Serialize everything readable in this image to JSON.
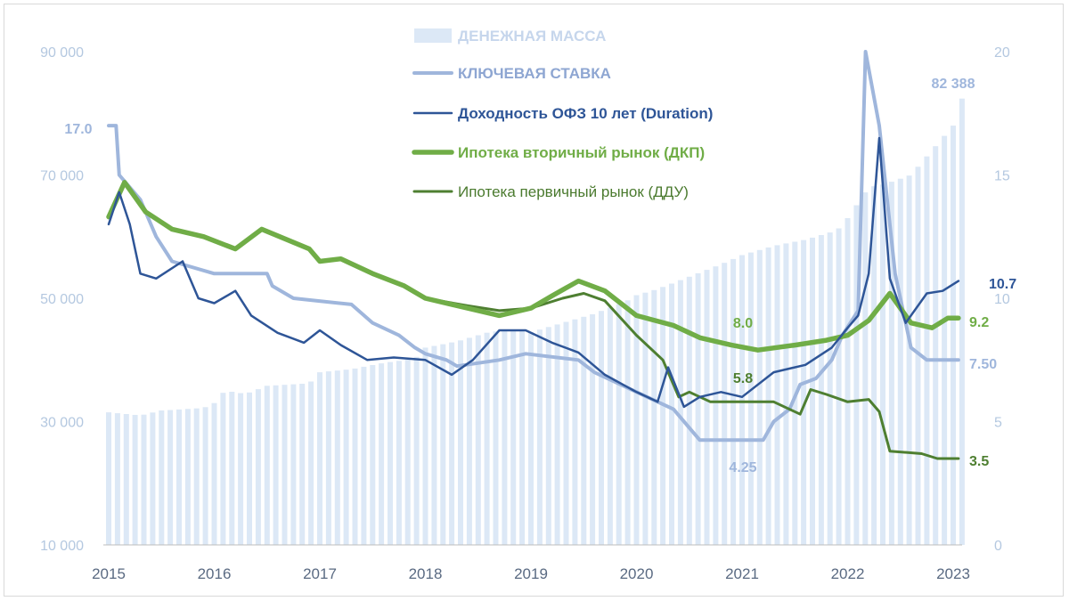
{
  "chart_data": {
    "type": "bar+line",
    "x_axis": {
      "range": [
        2015.0,
        2023.2
      ],
      "tick_labels": [
        "2015",
        "2016",
        "2017",
        "2018",
        "2019",
        "2020",
        "2021",
        "2022",
        "2023"
      ]
    },
    "y_left": {
      "range": [
        10000,
        90000
      ],
      "tick_labels": [
        "10 000",
        "30 000",
        "50 000",
        "70 000",
        "90 000"
      ],
      "tick_values": [
        10000,
        30000,
        50000,
        70000,
        90000
      ]
    },
    "y_right": {
      "range": [
        0,
        20
      ],
      "tick_labels": [
        "0",
        "5",
        "10",
        "15",
        "20"
      ],
      "tick_values": [
        0,
        5,
        10,
        15,
        20
      ]
    },
    "colors": {
      "money": "#dce8f6",
      "key_rate": "#9fb6dc",
      "ofz": "#2e5597",
      "mortgage_secondary": "#70ad47",
      "mortgage_primary": "#4e7f31",
      "left_axis_text": "#b4c8e0",
      "x_axis_text": "#5a6a82"
    },
    "money_supply": {
      "name": "ДЕНЕЖНАЯ МАССА",
      "axis": "left",
      "keypoints": [
        [
          2015.0,
          31500
        ],
        [
          2015.3,
          31000
        ],
        [
          2015.5,
          31800
        ],
        [
          2015.9,
          32200
        ],
        [
          2016.0,
          33000
        ],
        [
          2016.1,
          35000
        ],
        [
          2016.3,
          34500
        ],
        [
          2016.5,
          35800
        ],
        [
          2016.9,
          36200
        ],
        [
          2017.0,
          38000
        ],
        [
          2017.3,
          38500
        ],
        [
          2017.6,
          39500
        ],
        [
          2017.9,
          40200
        ],
        [
          2018.0,
          42000
        ],
        [
          2018.3,
          43000
        ],
        [
          2018.6,
          44500
        ],
        [
          2018.9,
          45000
        ],
        [
          2019.0,
          44500
        ],
        [
          2019.3,
          46000
        ],
        [
          2019.6,
          47500
        ],
        [
          2019.9,
          49500
        ],
        [
          2020.0,
          50500
        ],
        [
          2020.2,
          51500
        ],
        [
          2020.5,
          53500
        ],
        [
          2020.8,
          55500
        ],
        [
          2021.0,
          57000
        ],
        [
          2021.3,
          58500
        ],
        [
          2021.6,
          59500
        ],
        [
          2021.9,
          61000
        ],
        [
          2022.0,
          63000
        ],
        [
          2022.1,
          65500
        ],
        [
          2022.2,
          68000
        ],
        [
          2022.35,
          68500
        ],
        [
          2022.6,
          70000
        ],
        [
          2022.85,
          75000
        ],
        [
          2023.0,
          78000
        ],
        [
          2023.05,
          82388
        ]
      ]
    },
    "key_rate": {
      "name": "КЛЮЧЕВАЯ СТАВКА",
      "axis": "right",
      "keypoints": [
        [
          2015.0,
          17.0
        ],
        [
          2015.07,
          17.0
        ],
        [
          2015.1,
          15.0
        ],
        [
          2015.3,
          14.0
        ],
        [
          2015.45,
          12.5
        ],
        [
          2015.6,
          11.5
        ],
        [
          2016.0,
          11.0
        ],
        [
          2016.5,
          11.0
        ],
        [
          2016.55,
          10.5
        ],
        [
          2016.75,
          10.0
        ],
        [
          2017.3,
          9.75
        ],
        [
          2017.5,
          9.0
        ],
        [
          2017.75,
          8.5
        ],
        [
          2017.9,
          8.0
        ],
        [
          2018.0,
          7.75
        ],
        [
          2018.2,
          7.5
        ],
        [
          2018.3,
          7.25
        ],
        [
          2018.7,
          7.5
        ],
        [
          2018.95,
          7.75
        ],
        [
          2019.45,
          7.5
        ],
        [
          2019.6,
          7.0
        ],
        [
          2019.85,
          6.5
        ],
        [
          2020.1,
          6.0
        ],
        [
          2020.35,
          5.5
        ],
        [
          2020.55,
          4.5
        ],
        [
          2020.6,
          4.25
        ],
        [
          2021.2,
          4.25
        ],
        [
          2021.3,
          5.0
        ],
        [
          2021.45,
          5.5
        ],
        [
          2021.55,
          6.5
        ],
        [
          2021.7,
          6.75
        ],
        [
          2021.85,
          7.5
        ],
        [
          2021.95,
          8.5
        ],
        [
          2022.1,
          9.5
        ],
        [
          2022.17,
          20.0
        ],
        [
          2022.3,
          17.0
        ],
        [
          2022.45,
          11.0
        ],
        [
          2022.6,
          8.0
        ],
        [
          2022.75,
          7.5
        ],
        [
          2023.05,
          7.5
        ]
      ]
    },
    "ofz_10y": {
      "name": "Доходность ОФЗ 10 лет (Duration)",
      "axis": "right",
      "keypoints": [
        [
          2015.0,
          13.0
        ],
        [
          2015.1,
          14.3
        ],
        [
          2015.2,
          13.0
        ],
        [
          2015.3,
          11.0
        ],
        [
          2015.45,
          10.8
        ],
        [
          2015.7,
          11.5
        ],
        [
          2015.85,
          10.0
        ],
        [
          2016.0,
          9.8
        ],
        [
          2016.2,
          10.3
        ],
        [
          2016.35,
          9.3
        ],
        [
          2016.6,
          8.6
        ],
        [
          2016.85,
          8.2
        ],
        [
          2017.0,
          8.7
        ],
        [
          2017.2,
          8.1
        ],
        [
          2017.45,
          7.5
        ],
        [
          2017.7,
          7.6
        ],
        [
          2018.0,
          7.5
        ],
        [
          2018.25,
          6.9
        ],
        [
          2018.45,
          7.5
        ],
        [
          2018.7,
          8.7
        ],
        [
          2018.95,
          8.7
        ],
        [
          2019.2,
          8.2
        ],
        [
          2019.45,
          7.8
        ],
        [
          2019.7,
          6.9
        ],
        [
          2020.0,
          6.2
        ],
        [
          2020.2,
          5.8
        ],
        [
          2020.3,
          7.2
        ],
        [
          2020.45,
          5.6
        ],
        [
          2020.6,
          6.0
        ],
        [
          2020.8,
          6.2
        ],
        [
          2021.0,
          6.0
        ],
        [
          2021.3,
          7.0
        ],
        [
          2021.6,
          7.3
        ],
        [
          2021.85,
          8.0
        ],
        [
          2022.0,
          8.8
        ],
        [
          2022.1,
          9.3
        ],
        [
          2022.2,
          11.0
        ],
        [
          2022.3,
          16.5
        ],
        [
          2022.4,
          10.8
        ],
        [
          2022.55,
          9.0
        ],
        [
          2022.75,
          10.2
        ],
        [
          2022.9,
          10.3
        ],
        [
          2023.05,
          10.7
        ]
      ]
    },
    "mortgage_secondary": {
      "name": "Ипотека вторичный рынок (ДКП)",
      "axis": "right",
      "keypoints": [
        [
          2015.0,
          13.3
        ],
        [
          2015.15,
          14.7
        ],
        [
          2015.35,
          13.5
        ],
        [
          2015.6,
          12.8
        ],
        [
          2015.9,
          12.5
        ],
        [
          2016.2,
          12.0
        ],
        [
          2016.45,
          12.8
        ],
        [
          2016.9,
          12.0
        ],
        [
          2017.0,
          11.5
        ],
        [
          2017.2,
          11.6
        ],
        [
          2017.5,
          11.0
        ],
        [
          2017.8,
          10.5
        ],
        [
          2018.0,
          10.0
        ],
        [
          2018.3,
          9.7
        ],
        [
          2018.7,
          9.3
        ],
        [
          2019.0,
          9.6
        ],
        [
          2019.2,
          10.1
        ],
        [
          2019.45,
          10.7
        ],
        [
          2019.7,
          10.3
        ],
        [
          2020.0,
          9.3
        ],
        [
          2020.35,
          8.9
        ],
        [
          2020.6,
          8.4
        ],
        [
          2020.9,
          8.1
        ],
        [
          2021.15,
          7.9
        ],
        [
          2021.5,
          8.1
        ],
        [
          2021.8,
          8.3
        ],
        [
          2022.0,
          8.5
        ],
        [
          2022.2,
          9.1
        ],
        [
          2022.4,
          10.2
        ],
        [
          2022.6,
          9.0
        ],
        [
          2022.8,
          8.8
        ],
        [
          2022.95,
          9.2
        ],
        [
          2023.05,
          9.2
        ]
      ]
    },
    "mortgage_primary": {
      "name": "Ипотека первичный рынок (ДДУ)",
      "axis": "right",
      "keypoints": [
        [
          2018.0,
          10.0
        ],
        [
          2018.4,
          9.7
        ],
        [
          2018.7,
          9.5
        ],
        [
          2019.0,
          9.6
        ],
        [
          2019.3,
          10.0
        ],
        [
          2019.5,
          10.2
        ],
        [
          2019.7,
          9.9
        ],
        [
          2020.0,
          8.5
        ],
        [
          2020.25,
          7.5
        ],
        [
          2020.4,
          6.0
        ],
        [
          2020.5,
          6.2
        ],
        [
          2020.7,
          5.8
        ],
        [
          2021.0,
          5.8
        ],
        [
          2021.3,
          5.8
        ],
        [
          2021.55,
          5.3
        ],
        [
          2021.65,
          6.3
        ],
        [
          2021.8,
          6.1
        ],
        [
          2022.0,
          5.8
        ],
        [
          2022.2,
          5.9
        ],
        [
          2022.3,
          5.4
        ],
        [
          2022.4,
          3.8
        ],
        [
          2022.7,
          3.7
        ],
        [
          2022.85,
          3.5
        ],
        [
          2023.05,
          3.5
        ]
      ]
    },
    "annotations": [
      {
        "text": "17.0",
        "series": "key_rate"
      },
      {
        "text": "82 388",
        "series": "money_supply"
      },
      {
        "text": "10.7",
        "series": "ofz_10y"
      },
      {
        "text": "9.2",
        "series": "mortgage_secondary"
      },
      {
        "text": "7.50",
        "series": "key_rate"
      },
      {
        "text": "8.0",
        "series": "mortgage_secondary"
      },
      {
        "text": "5.8",
        "series": "mortgage_primary"
      },
      {
        "text": "4.25",
        "series": "key_rate"
      },
      {
        "text": "3.5",
        "series": "mortgage_primary"
      }
    ],
    "legend": {
      "placement": "top-center",
      "entries": [
        {
          "label": "ДЕНЕЖНАЯ МАССА",
          "series": "money_supply"
        },
        {
          "label": "КЛЮЧЕВАЯ СТАВКА",
          "series": "key_rate"
        },
        {
          "label": "Доходность ОФЗ 10 лет (Duration)",
          "series": "ofz_10y"
        },
        {
          "label": "Ипотека вторичный рынок (ДКП)",
          "series": "mortgage_secondary"
        },
        {
          "label": "Ипотека первичный рынок (ДДУ)",
          "series": "mortgage_primary"
        }
      ]
    }
  }
}
